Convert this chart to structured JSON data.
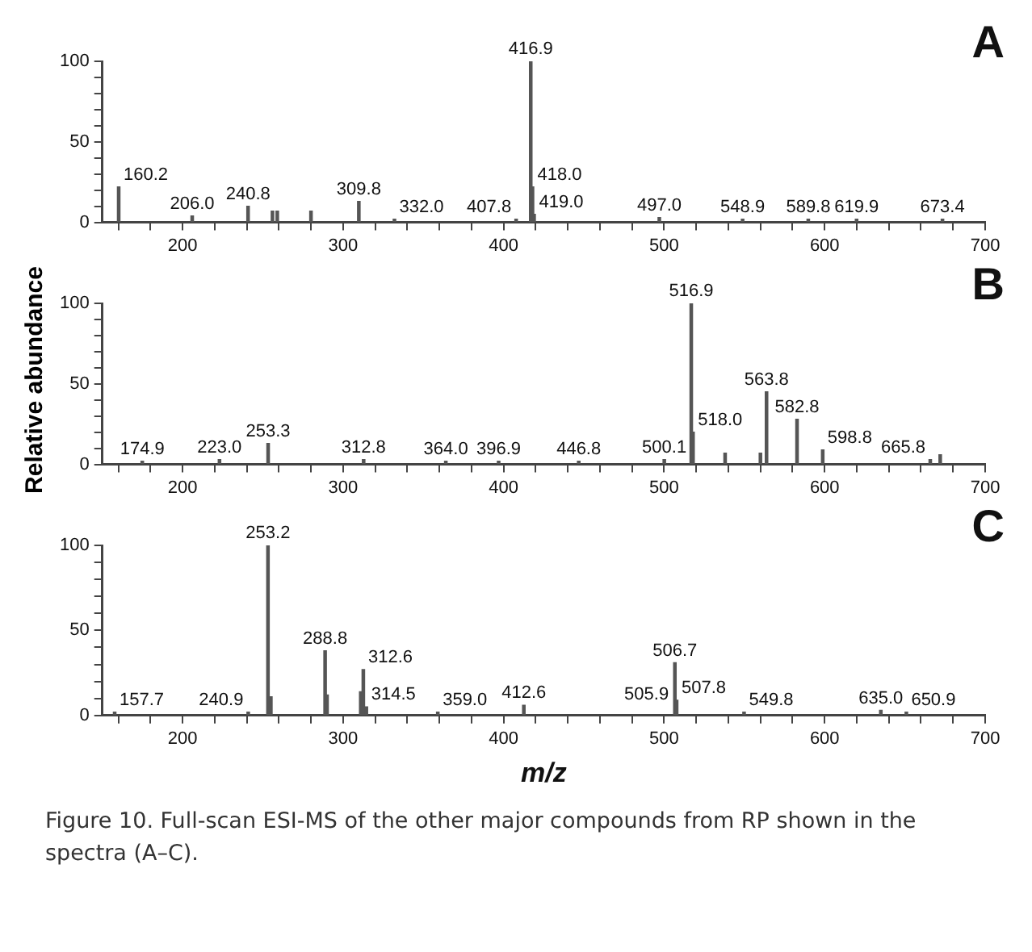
{
  "chart_data": [
    {
      "type": "bar",
      "title": "A",
      "color": "#555555",
      "x": [
        160.2,
        206.0,
        240.8,
        256,
        259,
        280,
        309.8,
        332.0,
        407.8,
        416.9,
        418.0,
        419.0,
        497.0,
        548.9,
        589.8,
        619.9,
        673.4
      ],
      "values": [
        22,
        4,
        10,
        7,
        7,
        7,
        13,
        2,
        2,
        100,
        22,
        5,
        3,
        2,
        2,
        2,
        2
      ],
      "xlim": [
        150,
        700
      ],
      "ylim": [
        0,
        100
      ],
      "xticks": [
        {
          "value": 160,
          "label": null
        },
        {
          "value": 180,
          "label": null
        },
        200,
        {
          "value": 220,
          "label": null
        },
        {
          "value": 240,
          "label": null
        },
        {
          "value": 260,
          "label": null
        },
        {
          "value": 280,
          "label": null
        },
        300,
        {
          "value": 320,
          "label": null
        },
        {
          "value": 340,
          "label": null
        },
        {
          "value": 360,
          "label": null
        },
        {
          "value": 380,
          "label": null
        },
        400,
        {
          "value": 420,
          "label": null
        },
        {
          "value": 440,
          "label": null
        },
        {
          "value": 460,
          "label": null
        },
        {
          "value": 480,
          "label": null
        },
        500,
        {
          "value": 520,
          "label": null
        },
        {
          "value": 540,
          "label": null
        },
        {
          "value": 560,
          "label": null
        },
        {
          "value": 580,
          "label": null
        },
        600,
        {
          "value": 620,
          "label": null
        },
        {
          "value": 640,
          "label": null
        },
        {
          "value": 660,
          "label": null
        },
        {
          "value": 680,
          "label": null
        },
        700
      ],
      "yticks": [
        0,
        {
          "value": 10,
          "label": null
        },
        {
          "value": 20,
          "label": null
        },
        {
          "value": 30,
          "label": null
        },
        {
          "value": 40,
          "label": null
        },
        50,
        {
          "value": 60,
          "label": null
        },
        {
          "value": 70,
          "label": null
        },
        {
          "value": 80,
          "label": null
        },
        {
          "value": 90,
          "label": null
        },
        100
      ],
      "annotations": [
        {
          "text": "416.9",
          "x": 416.9,
          "y": 100
        },
        {
          "text": "160.2",
          "x": 160.2,
          "y": 22
        },
        {
          "text": "418.0",
          "x": 418.0,
          "y": 22
        },
        {
          "text": "309.8",
          "x": 309.8,
          "y": 13
        },
        {
          "text": "240.8",
          "x": 240.8,
          "y": 10
        },
        {
          "text": "419.0",
          "x": 419.0,
          "y": 5
        },
        {
          "text": "206.0",
          "x": 206.0,
          "y": 4
        },
        {
          "text": "497.0",
          "x": 497.0,
          "y": 3
        },
        {
          "text": "332.0",
          "x": 332.0,
          "y": 2
        },
        {
          "text": "407.8",
          "x": 407.8,
          "y": 2
        },
        {
          "text": "589.8",
          "x": 589.8,
          "y": 2
        },
        {
          "text": "673.4",
          "x": 673.4,
          "y": 2
        },
        {
          "text": "548.9",
          "x": 548.9,
          "y": 2
        },
        {
          "text": "619.9",
          "x": 619.9,
          "y": 2
        }
      ]
    },
    {
      "type": "bar",
      "title": "B",
      "color": "#555555",
      "ylabel": "Relative abundance",
      "x": [
        174.9,
        223.0,
        253.3,
        312.8,
        364.0,
        396.9,
        446.8,
        500.1,
        516.9,
        518.0,
        538,
        560,
        563.8,
        582.8,
        598.8,
        665.8,
        672
      ],
      "values": [
        2,
        3,
        13,
        3,
        2,
        2,
        2,
        3,
        100,
        20,
        7,
        7,
        45,
        28,
        9,
        3,
        6
      ],
      "xlim": [
        150,
        700
      ],
      "ylim": [
        0,
        100
      ],
      "xticks": [
        {
          "value": 160,
          "label": null
        },
        {
          "value": 180,
          "label": null
        },
        200,
        {
          "value": 220,
          "label": null
        },
        {
          "value": 240,
          "label": null
        },
        {
          "value": 260,
          "label": null
        },
        {
          "value": 280,
          "label": null
        },
        300,
        {
          "value": 320,
          "label": null
        },
        {
          "value": 340,
          "label": null
        },
        {
          "value": 360,
          "label": null
        },
        {
          "value": 380,
          "label": null
        },
        400,
        {
          "value": 420,
          "label": null
        },
        {
          "value": 440,
          "label": null
        },
        {
          "value": 460,
          "label": null
        },
        {
          "value": 480,
          "label": null
        },
        500,
        {
          "value": 520,
          "label": null
        },
        {
          "value": 540,
          "label": null
        },
        {
          "value": 560,
          "label": null
        },
        {
          "value": 580,
          "label": null
        },
        600,
        {
          "value": 620,
          "label": null
        },
        {
          "value": 640,
          "label": null
        },
        {
          "value": 660,
          "label": null
        },
        {
          "value": 680,
          "label": null
        },
        700
      ],
      "yticks": [
        0,
        {
          "value": 10,
          "label": null
        },
        {
          "value": 20,
          "label": null
        },
        {
          "value": 30,
          "label": null
        },
        {
          "value": 40,
          "label": null
        },
        50,
        {
          "value": 60,
          "label": null
        },
        {
          "value": 70,
          "label": null
        },
        {
          "value": 80,
          "label": null
        },
        {
          "value": 90,
          "label": null
        },
        100
      ],
      "annotations": [
        {
          "text": "516.9",
          "x": 516.9,
          "y": 100
        },
        {
          "text": "563.8",
          "x": 563.8,
          "y": 45
        },
        {
          "text": "582.8",
          "x": 582.8,
          "y": 28
        },
        {
          "text": "518.0",
          "x": 518.0,
          "y": 20
        },
        {
          "text": "253.3",
          "x": 253.3,
          "y": 13
        },
        {
          "text": "598.8",
          "x": 598.8,
          "y": 9
        },
        {
          "text": "223.0",
          "x": 223.0,
          "y": 3
        },
        {
          "text": "312.8",
          "x": 312.8,
          "y": 3
        },
        {
          "text": "500.1",
          "x": 500.1,
          "y": 3
        },
        {
          "text": "665.8",
          "x": 665.8,
          "y": 3
        },
        {
          "text": "174.9",
          "x": 174.9,
          "y": 2
        },
        {
          "text": "364.0",
          "x": 364.0,
          "y": 2
        },
        {
          "text": "396.9",
          "x": 396.9,
          "y": 2
        },
        {
          "text": "446.8",
          "x": 446.8,
          "y": 2
        }
      ]
    },
    {
      "type": "bar",
      "title": "C",
      "color": "#555555",
      "xlabel": "m/z",
      "x": [
        157.7,
        240.9,
        253.2,
        255,
        288.8,
        290,
        311,
        312.6,
        314.5,
        359.0,
        412.6,
        505.9,
        506.7,
        507.8,
        549.8,
        635.0,
        650.9
      ],
      "values": [
        2,
        2,
        100,
        11,
        38,
        12,
        14,
        27,
        5,
        2,
        6,
        null,
        31,
        9,
        2,
        3,
        2
      ],
      "xlim": [
        150,
        700
      ],
      "ylim": [
        0,
        100
      ],
      "xticks": [
        {
          "value": 160,
          "label": null
        },
        {
          "value": 180,
          "label": null
        },
        200,
        {
          "value": 220,
          "label": null
        },
        {
          "value": 240,
          "label": null
        },
        {
          "value": 260,
          "label": null
        },
        {
          "value": 280,
          "label": null
        },
        300,
        {
          "value": 320,
          "label": null
        },
        {
          "value": 340,
          "label": null
        },
        {
          "value": 360,
          "label": null
        },
        {
          "value": 380,
          "label": null
        },
        400,
        {
          "value": 420,
          "label": null
        },
        {
          "value": 440,
          "label": null
        },
        {
          "value": 460,
          "label": null
        },
        {
          "value": 480,
          "label": null
        },
        500,
        {
          "value": 520,
          "label": null
        },
        {
          "value": 540,
          "label": null
        },
        {
          "value": 560,
          "label": null
        },
        {
          "value": 580,
          "label": null
        },
        600,
        {
          "value": 620,
          "label": null
        },
        {
          "value": 640,
          "label": null
        },
        {
          "value": 660,
          "label": null
        },
        {
          "value": 680,
          "label": null
        },
        700
      ],
      "yticks": [
        0,
        {
          "value": 10,
          "label": null
        },
        {
          "value": 20,
          "label": null
        },
        {
          "value": 30,
          "label": null
        },
        {
          "value": 40,
          "label": null
        },
        50,
        {
          "value": 60,
          "label": null
        },
        {
          "value": 70,
          "label": null
        },
        {
          "value": 80,
          "label": null
        },
        {
          "value": 90,
          "label": null
        },
        100
      ],
      "annotations": [
        {
          "text": "253.2",
          "x": 253.2,
          "y": 100
        },
        {
          "text": "288.8",
          "x": 288.8,
          "y": 38
        },
        {
          "text": "506.7",
          "x": 506.7,
          "y": 31
        },
        {
          "text": "312.6",
          "x": 312.6,
          "y": 27
        },
        {
          "text": "507.8",
          "x": 507.8,
          "y": 9
        },
        {
          "text": "412.6",
          "x": 412.6,
          "y": 6
        },
        {
          "text": "314.5",
          "x": 314.5,
          "y": 5
        },
        {
          "text": "505.9",
          "x": 505.9,
          "y": 5
        },
        {
          "text": "635.0",
          "x": 635.0,
          "y": 3
        },
        {
          "text": "157.7",
          "x": 157.7,
          "y": 2
        },
        {
          "text": "240.9",
          "x": 240.9,
          "y": 2
        },
        {
          "text": "359.0",
          "x": 359.0,
          "y": 2
        },
        {
          "text": "549.8",
          "x": 549.8,
          "y": 2
        },
        {
          "text": "650.9",
          "x": 650.9,
          "y": 2
        },
        "Figure 10. Full-scan ESI-MS of the other major compounds from RP shown in the spectra (A–C)."
      ]
    }
  ]
}
